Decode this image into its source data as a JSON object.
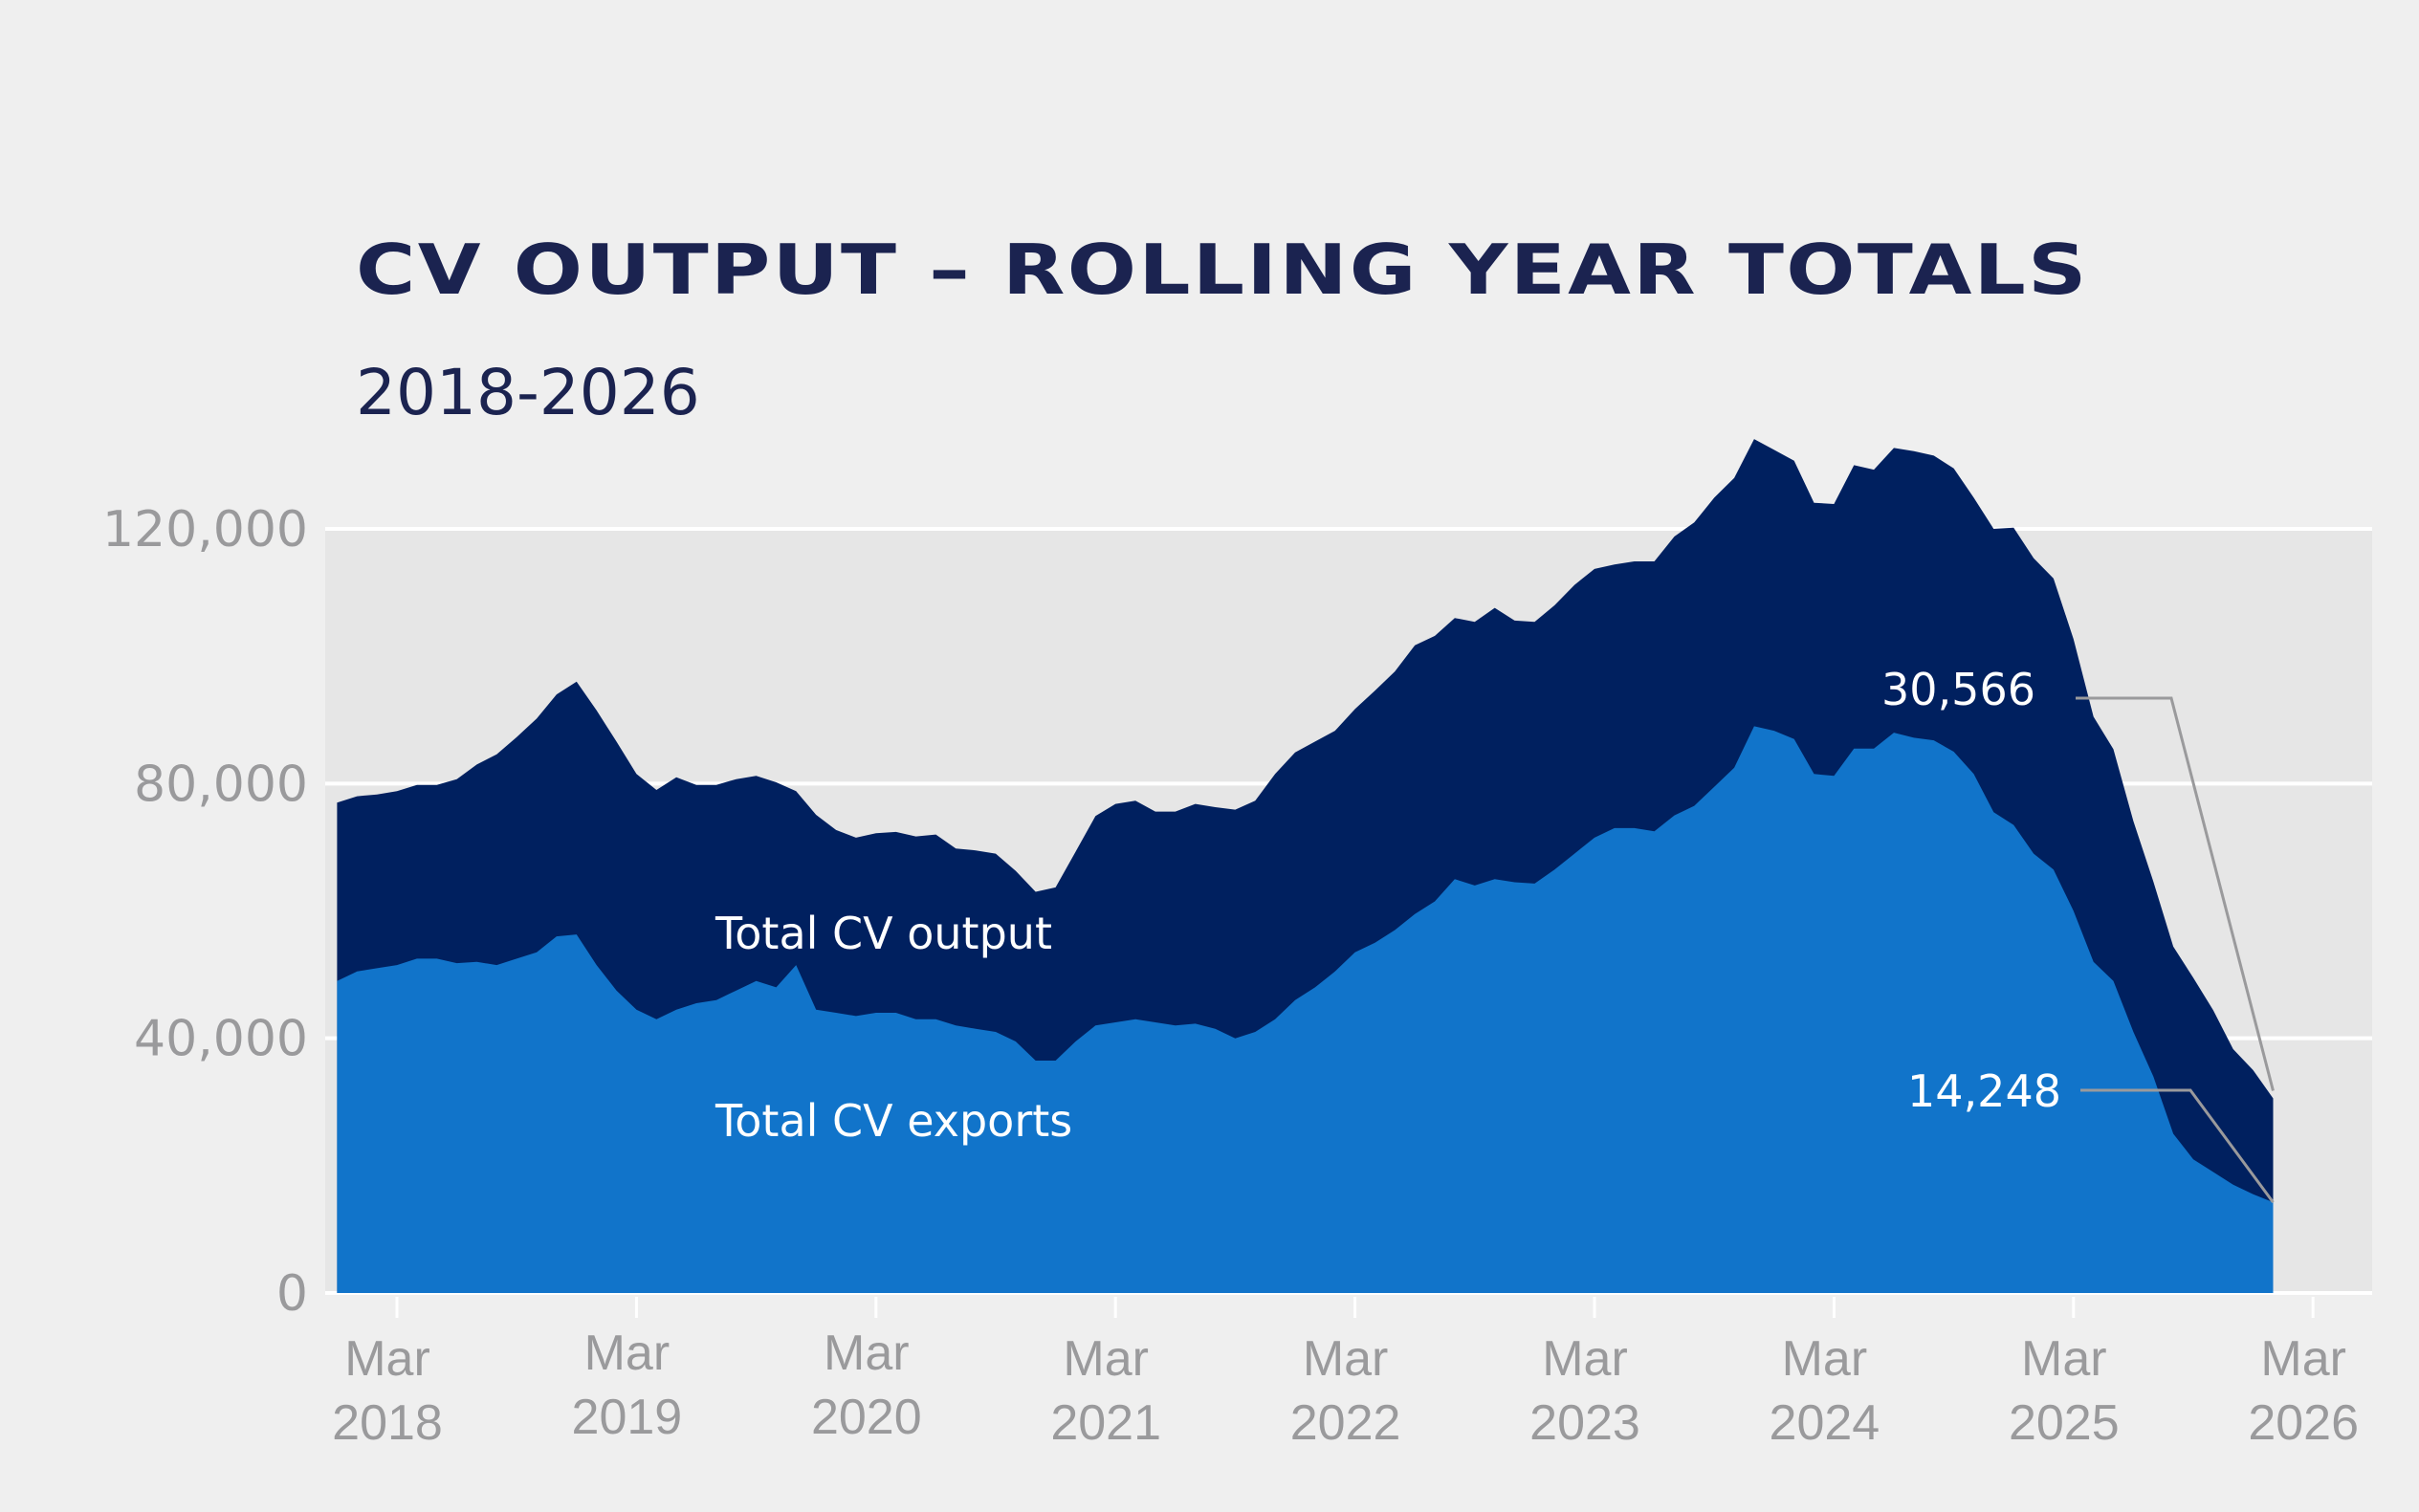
{
  "chart_data": {
    "type": "area",
    "title": "CV OUTPUT – ROLLING YEAR TOTALS",
    "subtitle": "2018-2026",
    "xlabel": "",
    "ylabel": "",
    "ylim": [
      0,
      120000
    ],
    "yticks": [
      0,
      40000,
      80000,
      120000
    ],
    "ytick_labels": [
      "0",
      "40,000",
      "80,000",
      "120,000"
    ],
    "xtick_labels": [
      [
        "Mar",
        "2018"
      ],
      [
        "Mar",
        "2019"
      ],
      [
        "Mar",
        "2020"
      ],
      [
        "Mar",
        "2021"
      ],
      [
        "Mar",
        "2022"
      ],
      [
        "Mar",
        "2023"
      ],
      [
        "Mar",
        "2024"
      ],
      [
        "Mar",
        "2025"
      ],
      [
        "Mar",
        "2026"
      ]
    ],
    "x_start": "Dec 2017",
    "x_end": "Mar 2026",
    "x_frequency": "monthly",
    "grid": true,
    "series": [
      {
        "name": "Total CV output",
        "color": "#00205f",
        "values": [
          77000,
          78000,
          78300,
          78800,
          79800,
          79800,
          80700,
          83000,
          84600,
          87300,
          90200,
          94000,
          96000,
          91500,
          86600,
          81500,
          79000,
          81000,
          79800,
          79800,
          80700,
          81200,
          80200,
          78800,
          75100,
          72700,
          71500,
          72200,
          72400,
          71700,
          72000,
          69800,
          69500,
          69000,
          66300,
          63000,
          63700,
          69300,
          74900,
          76800,
          77300,
          75600,
          75600,
          76800,
          76300,
          75900,
          77300,
          81500,
          84900,
          86600,
          88300,
          91700,
          94600,
          97600,
          101700,
          103200,
          106000,
          105400,
          107600,
          105600,
          105400,
          108000,
          111200,
          113700,
          114400,
          114900,
          114900,
          118800,
          121000,
          124900,
          128000,
          134100,
          132400,
          130700,
          124100,
          123900,
          130000,
          129300,
          132700,
          132200,
          131500,
          129500,
          124900,
          120000,
          120200,
          115400,
          112200,
          102700,
          90500,
          85400,
          74100,
          64600,
          54400,
          49500,
          44400,
          38300,
          35000,
          30566
        ]
      },
      {
        "name": "Total CV exports",
        "color": "#1174ca",
        "values": [
          49000,
          50500,
          51000,
          51500,
          52500,
          52500,
          51800,
          52000,
          51500,
          52500,
          53500,
          56000,
          56300,
          51500,
          47500,
          44500,
          43000,
          44500,
          45500,
          46000,
          47500,
          49000,
          48000,
          51500,
          44500,
          44000,
          43500,
          44000,
          44000,
          43000,
          43000,
          42000,
          41500,
          41000,
          39500,
          36500,
          36500,
          39500,
          42000,
          42500,
          43000,
          42500,
          42000,
          42300,
          41500,
          40000,
          41000,
          43000,
          46000,
          48000,
          50500,
          53500,
          55000,
          57000,
          59500,
          61500,
          65000,
          64000,
          65000,
          64500,
          64300,
          66500,
          69000,
          71500,
          73000,
          73000,
          72500,
          75000,
          76500,
          79500,
          82500,
          89000,
          88300,
          87000,
          81500,
          81200,
          85500,
          85500,
          88000,
          87200,
          86800,
          85000,
          81500,
          75500,
          73500,
          69000,
          66500,
          60000,
          52000,
          49000,
          41000,
          34000,
          25000,
          21000,
          19000,
          17000,
          15500,
          14248
        ]
      }
    ],
    "annotations": {
      "output_series_label": "Total CV output",
      "exports_series_label": "Total CV exports",
      "output_end_value_label": "30,566",
      "exports_end_value_label": "14,248"
    }
  }
}
